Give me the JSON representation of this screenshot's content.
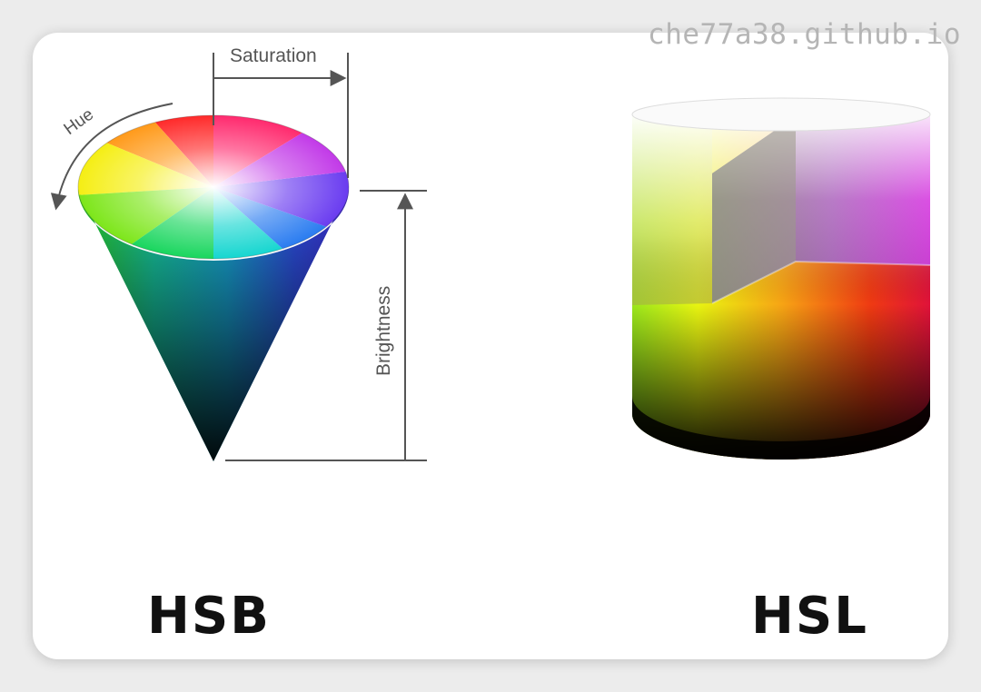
{
  "watermark": "che77a38.github.io",
  "hsb": {
    "title": "HSB",
    "hue_label": "Hue",
    "saturation_label": "Saturation",
    "brightness_label": "Brightness"
  },
  "hsl": {
    "title": "HSL"
  },
  "colors": {
    "card_bg": "#ffffff",
    "page_bg": "#ececec",
    "annotation": "#555555",
    "title_text": "#111111",
    "watermark": "#b5b5b5"
  }
}
